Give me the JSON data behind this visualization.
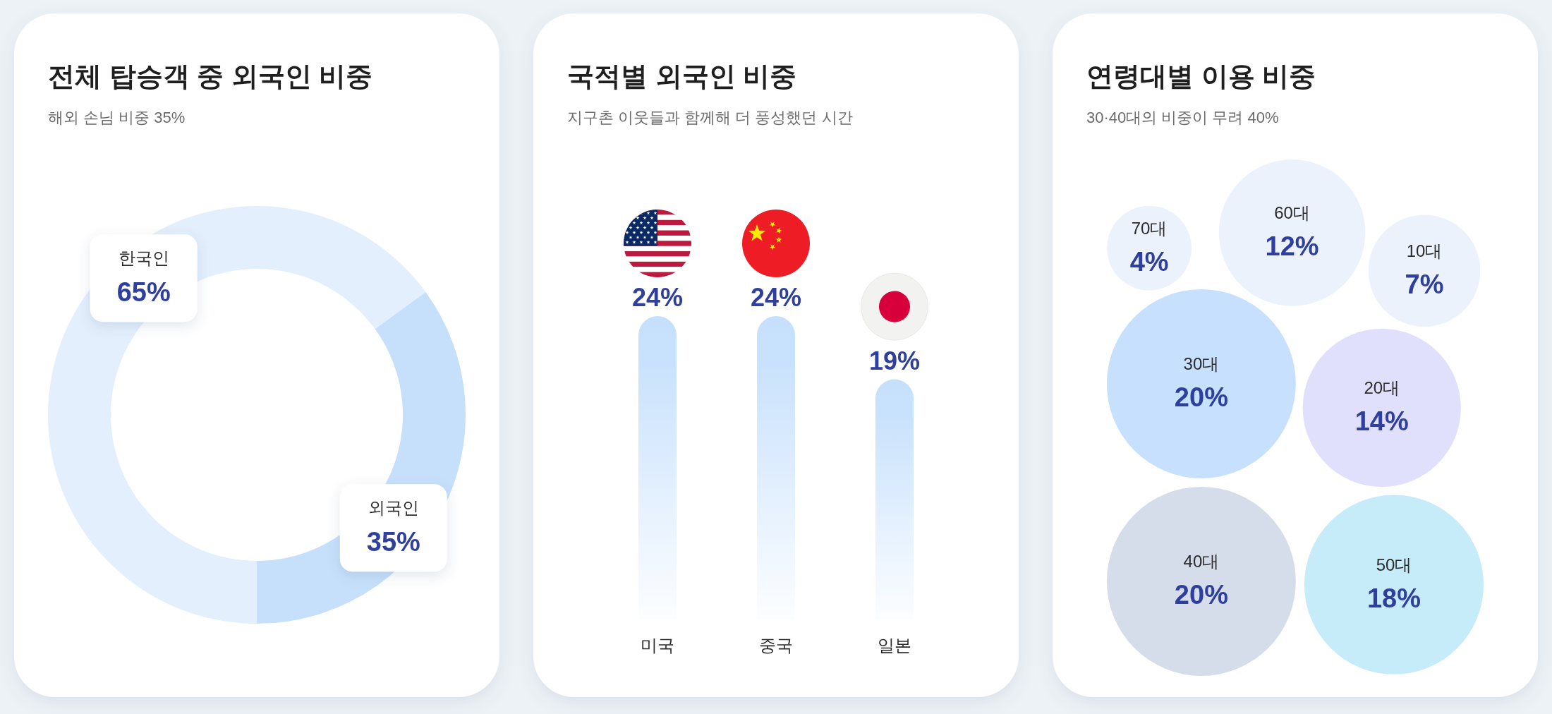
{
  "chart_data": [
    {
      "type": "donut",
      "title": "전체 탑승객 중 외국인 비중",
      "subtitle": "해외 손님 비중 35%",
      "categories": [
        "한국인",
        "외국인"
      ],
      "values": [
        65,
        35
      ],
      "value_labels": [
        "65%",
        "35%"
      ],
      "colors": [
        "#e3effd",
        "#c6e0fc"
      ]
    },
    {
      "type": "bar",
      "title": "국적별 외국인 비중",
      "subtitle": "지구촌 이웃들과 함께해 더 풍성했던 시간",
      "categories": [
        "미국",
        "중국",
        "일본"
      ],
      "values": [
        24,
        24,
        19
      ],
      "value_labels": [
        "24%",
        "24%",
        "19%"
      ],
      "color": "#c6e0fc"
    },
    {
      "type": "other",
      "title": "연령대별 이용 비중",
      "subtitle": "30·40대의 비중이 무려 40%",
      "categories": [
        "10대",
        "20대",
        "30대",
        "40대",
        "50대",
        "60대",
        "70대"
      ],
      "values": [
        7,
        14,
        20,
        20,
        18,
        12,
        4
      ],
      "value_labels": [
        "7%",
        "14%",
        "20%",
        "20%",
        "18%",
        "12%",
        "4%"
      ],
      "colors": [
        "#ebf2fc",
        "#e0e0fc",
        "#c7e0fd",
        "#d4dde9",
        "#c6ebf9",
        "#ebf2fc",
        "#ebf2fc"
      ]
    }
  ]
}
